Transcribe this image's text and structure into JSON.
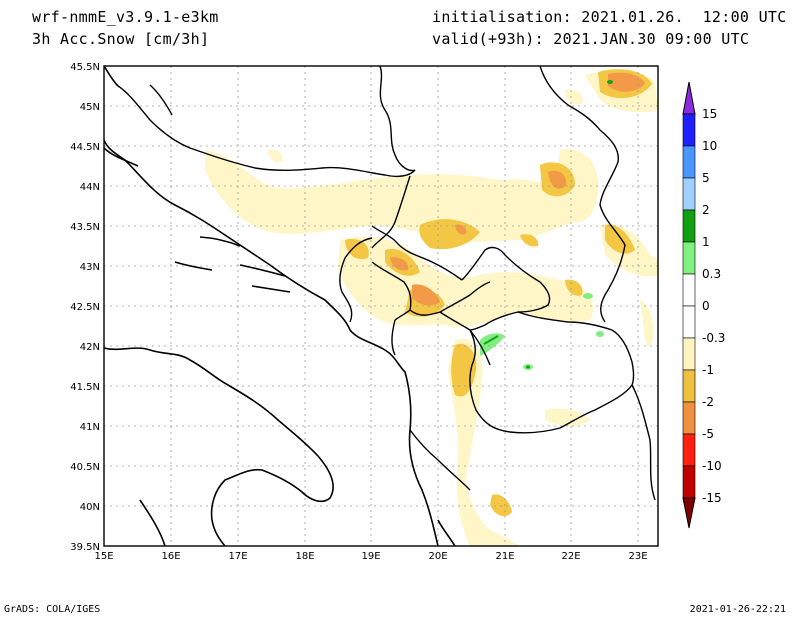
{
  "header": {
    "model": "wrf-nmmE_v3.9.1-e3km",
    "variable": "3h Acc.Snow [cm/3h]",
    "initialisation": "initialisation: 2021.01.26.  12:00 UTC",
    "valid": "valid(+93h): 2021.JAN.30 09:00 UTC"
  },
  "footer": {
    "left": "GrADS: COLA/IGES",
    "right": "2021-01-26-22:21"
  },
  "map": {
    "lat_labels": [
      "45.5N",
      "45N",
      "44.5N",
      "44N",
      "43.5N",
      "43N",
      "42.5N",
      "42N",
      "41.5N",
      "41N",
      "40.5N",
      "40N",
      "39.5N"
    ],
    "lon_labels": [
      "15E",
      "16E",
      "17E",
      "18E",
      "19E",
      "20E",
      "21E",
      "22E",
      "23E"
    ],
    "lat_range": [
      39.5,
      45.5
    ],
    "lon_range": [
      15.0,
      23.3
    ],
    "grid": "dotted"
  },
  "colorbar": {
    "labels": [
      "15",
      "10",
      "5",
      "2",
      "1",
      "0.3",
      "0",
      "-0.3",
      "-1",
      "-2",
      "-5",
      "-10",
      "-15"
    ],
    "colors": [
      "#8a2be2",
      "#2020ff",
      "#4a96ff",
      "#9fd0ff",
      "#10a010",
      "#80f080",
      "#ffffff",
      "#ffffff",
      "#fff4c0",
      "#f0c040",
      "#f09040",
      "#ff2010",
      "#c00000",
      "#800000"
    ]
  },
  "snow_colors": {
    "light": "#fff6c8",
    "medium": "#f3c744",
    "heavy": "#f29a47",
    "green": "#80ee80",
    "dgreen": "#18a018"
  }
}
